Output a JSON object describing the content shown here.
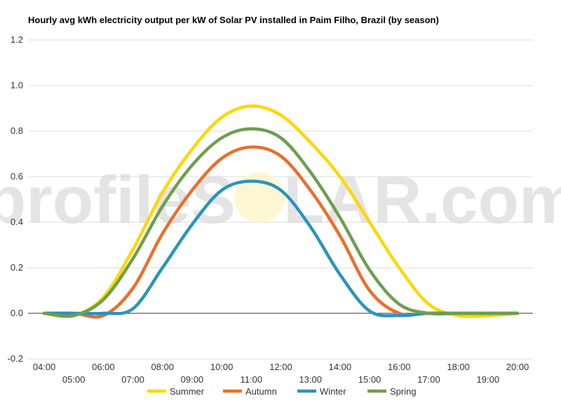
{
  "watermark": {
    "left": "profileS",
    "right": "LAR.com"
  },
  "chart_data": {
    "type": "line",
    "title": "Hourly avg kWh electricity output per kW of Solar PV installed in Paim Filho, Brazil (by season)",
    "xlabel": "",
    "ylabel": "",
    "x": [
      "04:00",
      "05:00",
      "06:00",
      "07:00",
      "08:00",
      "09:00",
      "10:00",
      "11:00",
      "12:00",
      "13:00",
      "14:00",
      "15:00",
      "16:00",
      "17:00",
      "18:00",
      "19:00",
      "20:00"
    ],
    "ylim": [
      -0.2,
      1.2
    ],
    "yticks": [
      "-0.2",
      "0.0",
      "0.2",
      "0.4",
      "0.6",
      "0.8",
      "1.0",
      "1.2"
    ],
    "grid": true,
    "legend_position": "bottom",
    "series": [
      {
        "name": "Summer",
        "color": "#FFD700",
        "values": [
          0.0,
          -0.01,
          0.07,
          0.28,
          0.53,
          0.72,
          0.86,
          0.91,
          0.87,
          0.75,
          0.6,
          0.4,
          0.2,
          0.04,
          -0.01,
          -0.01,
          0.0
        ]
      },
      {
        "name": "Autumn",
        "color": "#E8702A",
        "values": [
          0.0,
          0.0,
          -0.01,
          0.11,
          0.35,
          0.54,
          0.68,
          0.73,
          0.69,
          0.54,
          0.34,
          0.1,
          0.0,
          0.0,
          0.0,
          0.0,
          0.0
        ]
      },
      {
        "name": "Winter",
        "color": "#2B93BC",
        "values": [
          0.0,
          0.0,
          0.0,
          0.02,
          0.2,
          0.39,
          0.54,
          0.58,
          0.54,
          0.38,
          0.17,
          0.01,
          -0.01,
          0.0,
          0.0,
          0.0,
          0.0
        ]
      },
      {
        "name": "Spring",
        "color": "#6E9E4F",
        "values": [
          0.0,
          -0.01,
          0.06,
          0.24,
          0.47,
          0.65,
          0.77,
          0.81,
          0.77,
          0.62,
          0.42,
          0.19,
          0.04,
          0.0,
          0.0,
          0.0,
          0.0
        ]
      }
    ]
  }
}
